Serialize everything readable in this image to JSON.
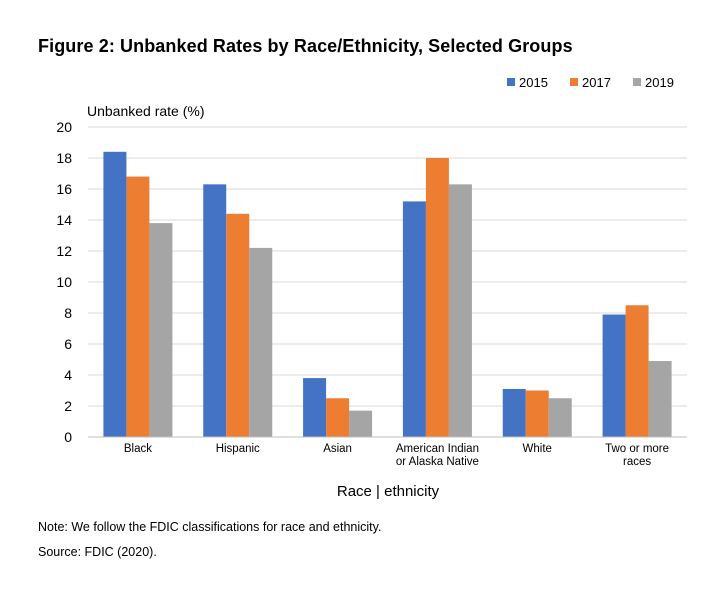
{
  "title": "Figure 2: Unbanked Rates by Race/Ethnicity, Selected Groups",
  "note": "Note: We follow the FDIC classifications for race and ethnicity.",
  "source": "Source: FDIC (2020).",
  "colors": {
    "2015": "#4472C4",
    "2017": "#ED7D31",
    "2019": "#A5A5A5"
  },
  "chart_data": {
    "type": "bar",
    "title": "Figure 2: Unbanked Rates by Race/Ethnicity, Selected Groups",
    "ylabel": "Unbanked rate (%)",
    "xlabel": "Race | ethnicity",
    "ylim": [
      0,
      20
    ],
    "yticks": [
      0,
      2,
      4,
      6,
      8,
      10,
      12,
      14,
      16,
      18,
      20
    ],
    "grid": true,
    "legend": "top-right",
    "categories": [
      [
        "Black"
      ],
      [
        "Hispanic"
      ],
      [
        "Asian"
      ],
      [
        "American Indian",
        "or Alaska Native"
      ],
      [
        "White"
      ],
      [
        "Two or more",
        "races"
      ]
    ],
    "series": [
      {
        "name": "2015",
        "values": [
          18.4,
          16.3,
          3.8,
          15.2,
          3.1,
          7.9
        ]
      },
      {
        "name": "2017",
        "values": [
          16.8,
          14.4,
          2.5,
          18.0,
          3.0,
          8.5
        ]
      },
      {
        "name": "2019",
        "values": [
          13.8,
          12.2,
          1.7,
          16.3,
          2.5,
          4.9
        ]
      }
    ]
  }
}
